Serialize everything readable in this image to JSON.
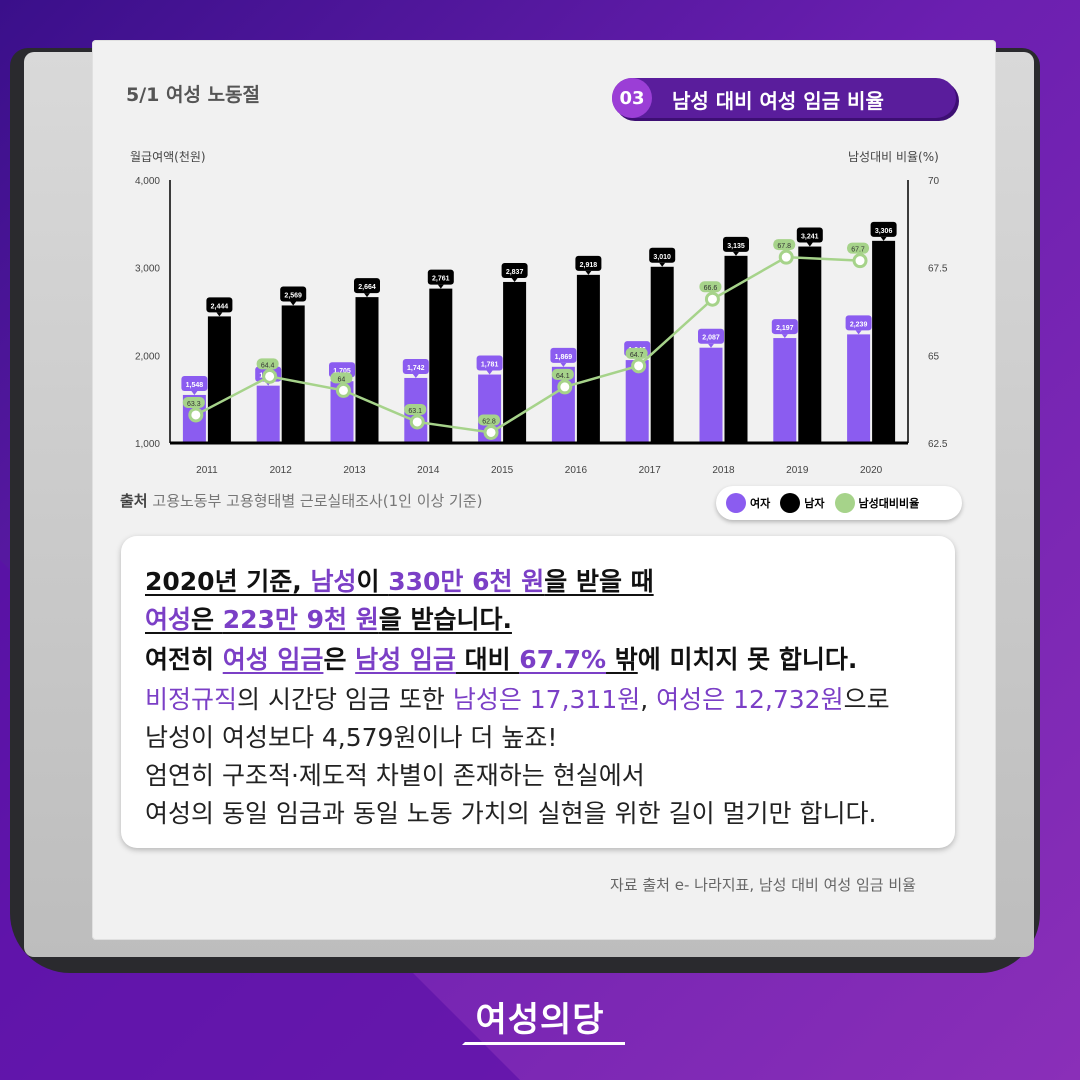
{
  "header": {
    "topic": "5/1 여성 노동절",
    "badge_num": "03",
    "badge_title": "남성 대비 여성 임금 비율"
  },
  "axes": {
    "left_title": "월급여액(천원)",
    "right_title": "남성대비 비율(%)"
  },
  "source": {
    "label": "출처",
    "text": "고용노동부 고용형태별 근로실태조사(1인 이상 기준)"
  },
  "legend": {
    "female": "여자",
    "male": "남자",
    "ratio": "남성대비비율"
  },
  "colors": {
    "female": "#8b5cf0",
    "male": "#000000",
    "ratio": "#a6d38a",
    "accent": "#5a1d9c"
  },
  "chart_data": {
    "type": "bar",
    "categories": [
      "2011",
      "2012",
      "2013",
      "2014",
      "2015",
      "2016",
      "2017",
      "2018",
      "2019",
      "2020"
    ],
    "series": [
      {
        "name": "여자",
        "type": "bar",
        "axis": "left",
        "values": [
          1548,
          1654,
          1705,
          1742,
          1781,
          1869,
          1946,
          2087,
          2197,
          2239
        ]
      },
      {
        "name": "남자",
        "type": "bar",
        "axis": "left",
        "values": [
          2444,
          2569,
          2664,
          2761,
          2837,
          2918,
          3010,
          3135,
          3241,
          3306
        ]
      },
      {
        "name": "남성대비비율",
        "type": "line",
        "axis": "right",
        "values": [
          63.3,
          64.4,
          64,
          63.1,
          62.8,
          64.1,
          64.7,
          66.6,
          67.8,
          67.7
        ]
      }
    ],
    "ylabel": "월급여액(천원)",
    "y2label": "남성대비 비율(%)",
    "ylim": [
      1000,
      4000
    ],
    "y2lim": [
      62.5,
      70
    ],
    "yticks": [
      1000,
      2000,
      3000,
      4000
    ],
    "y2ticks": [
      62.5,
      65,
      67.5,
      70
    ],
    "ytick_labels": [
      "1,000",
      "2,000",
      "3,000",
      "4,000"
    ],
    "y2tick_labels": [
      "62.5",
      "65",
      "67.5",
      "70"
    ]
  },
  "card": {
    "l1": [
      "2020년 기준, ",
      "남성",
      "이 ",
      "330만 6천 원",
      "을 받을 때 "
    ],
    "l2": [
      "여성",
      "은 ",
      "223만 9천 원",
      "을 받습니다."
    ],
    "l3": [
      "여전히 ",
      "여성 임금",
      "은 ",
      "남성 임금",
      " 대비 ",
      "67.7%",
      " 밖",
      "에 미치지 못 합니다."
    ],
    "l4": [
      "비정규직",
      "의 시간당 임금 또한 ",
      "남성은 17,311원",
      ", ",
      "여성은 12,732원",
      "으로"
    ],
    "l5": "남성이 여성보다 4,579원이나 더 높죠!",
    "l6": "엄연히 구조적·제도적 차별이 존재하는 현실에서",
    "l7": "여성의 동일 임금과 동일 노동 가치의 실현을 위한 길이 멀기만 합니다."
  },
  "credit": "자료 출처 e- 나라지표, 남성 대비 여성 임금 비율",
  "brand": "여성의당"
}
